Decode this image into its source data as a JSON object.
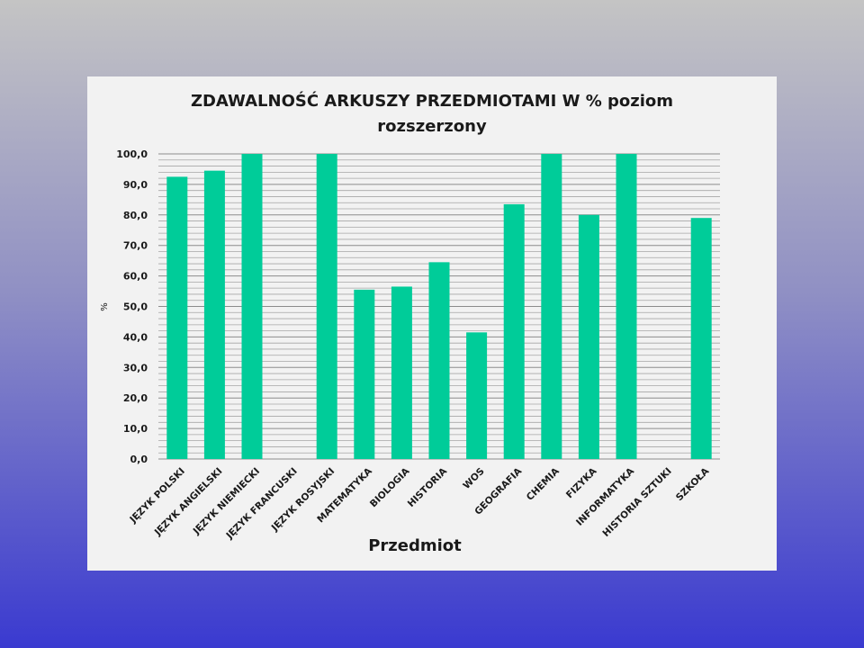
{
  "chart_data": {
    "type": "bar",
    "title": "ZDAWALNOŚĆ ARKUSZY PRZEDMIOTAMI    W   %    poziom\nrozszerzony",
    "xlabel": "Przedmiot",
    "ylabel": "%",
    "ylim": [
      0,
      100
    ],
    "yticks": [
      "0,0",
      "10,0",
      "20,0",
      "30,0",
      "40,0",
      "50,0",
      "60,0",
      "70,0",
      "80,0",
      "90,0",
      "100,0"
    ],
    "grid": true,
    "legend": "none",
    "bar_color": "#00cc99",
    "categories": [
      "JĘZYK POLSKI",
      "JĘZYK ANGIELSKI",
      "JĘZYK NIEMIECKI",
      "JĘZYK FRANCUSKI",
      "JĘZYK ROSYJSKI",
      "MATEMATYKA",
      "BIOLOGIA",
      "HISTORIA",
      "WOS",
      "GEOGRAFIA",
      "CHEMIA",
      "FIZYKA",
      "INFORMATYKA",
      "HISTORIA SZTUKI",
      "SZKOŁA"
    ],
    "values": [
      92.5,
      94.5,
      100,
      null,
      100,
      55.5,
      56.5,
      64.5,
      41.5,
      83.5,
      100,
      80,
      100,
      null,
      79
    ]
  }
}
